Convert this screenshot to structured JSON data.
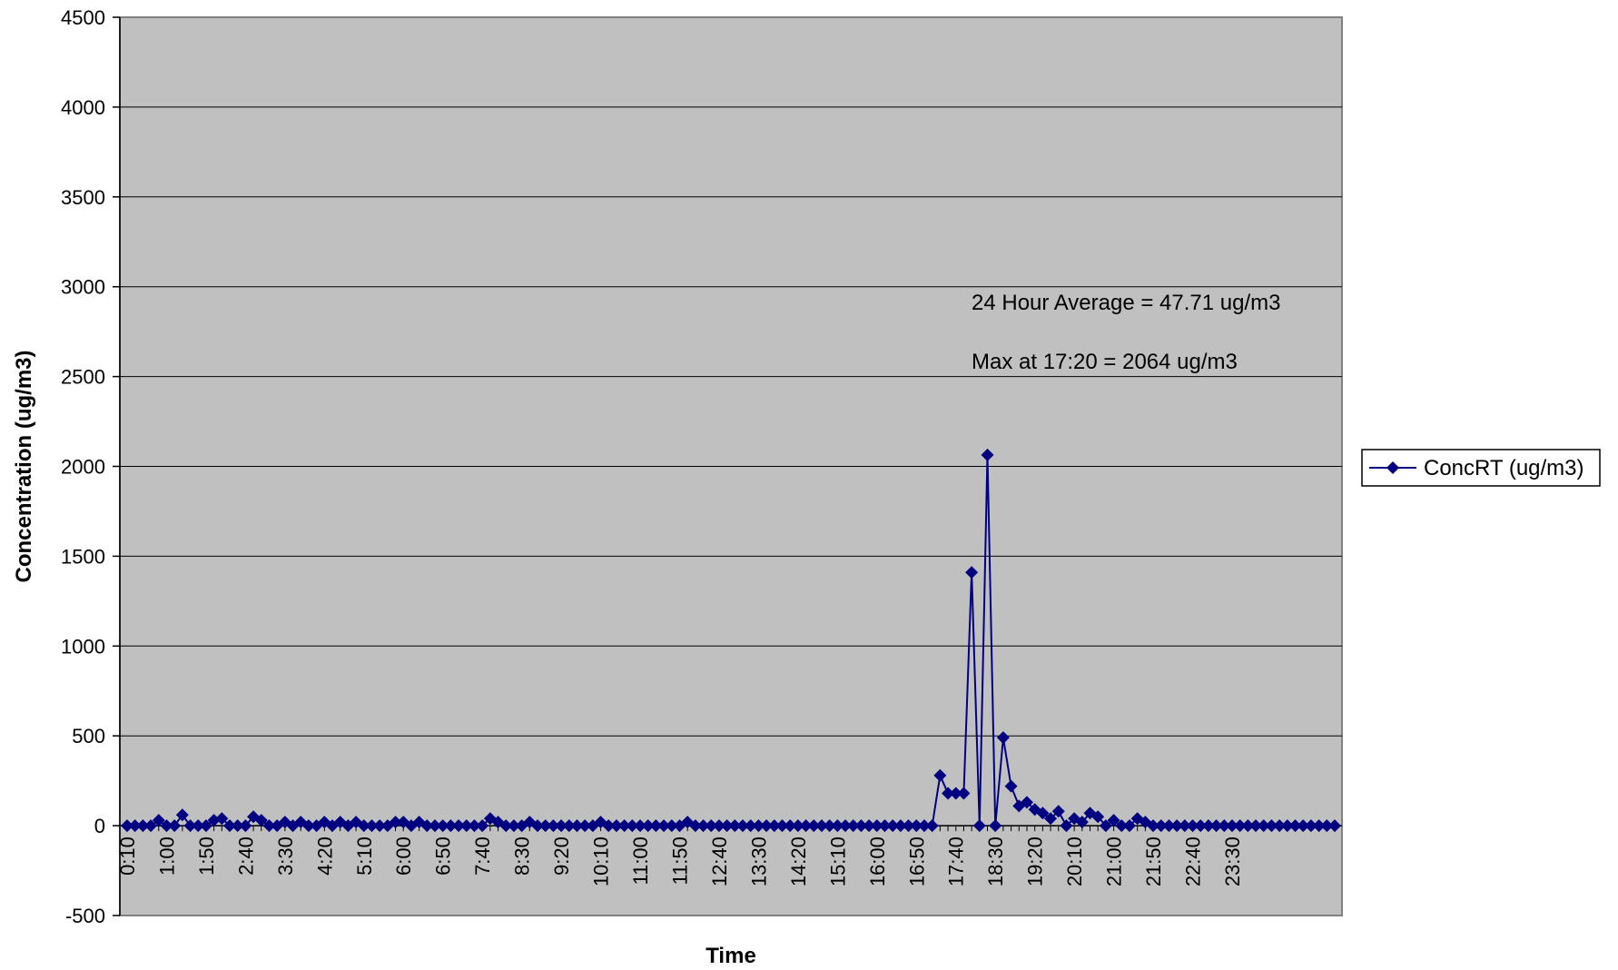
{
  "chart_data": {
    "type": "line",
    "xlabel": "Time",
    "ylabel": "Concentration (ug/m3)",
    "ylim": [
      -500,
      4500
    ],
    "yticks": [
      -500,
      0,
      500,
      1000,
      1500,
      2000,
      2500,
      3000,
      3500,
      4000,
      4500
    ],
    "grid": true,
    "legend_position": "right",
    "x_tick_labels": [
      "0:10",
      "1:00",
      "1:50",
      "2:40",
      "3:30",
      "4:20",
      "5:10",
      "6:00",
      "6:50",
      "7:40",
      "8:30",
      "9:20",
      "10:10",
      "11:00",
      "11:50",
      "12:40",
      "13:30",
      "14:20",
      "15:10",
      "16:00",
      "16:50",
      "17:40",
      "18:30",
      "19:20",
      "20:10",
      "21:00",
      "21:50",
      "22:40",
      "23:30"
    ],
    "x_start": "0:10",
    "x_step_minutes": 10,
    "annotations": [
      "24 Hour Average = 47.71 ug/m3",
      "Max at 17:20 = 2064 ug/m3"
    ],
    "series": [
      {
        "name": "ConcRT (ug/m3)",
        "color": "#000080",
        "values": [
          0,
          0,
          0,
          0,
          30,
          0,
          0,
          60,
          0,
          0,
          0,
          30,
          40,
          0,
          0,
          0,
          50,
          30,
          0,
          0,
          20,
          0,
          20,
          0,
          0,
          20,
          0,
          20,
          0,
          20,
          0,
          0,
          0,
          0,
          20,
          20,
          0,
          20,
          0,
          0,
          0,
          0,
          0,
          0,
          0,
          0,
          40,
          20,
          0,
          0,
          0,
          20,
          0,
          0,
          0,
          0,
          0,
          0,
          0,
          0,
          20,
          0,
          0,
          0,
          0,
          0,
          0,
          0,
          0,
          0,
          0,
          20,
          0,
          0,
          0,
          0,
          0,
          0,
          0,
          0,
          0,
          0,
          0,
          0,
          0,
          0,
          0,
          0,
          0,
          0,
          0,
          0,
          0,
          0,
          0,
          0,
          0,
          0,
          0,
          0,
          0,
          0,
          0,
          280,
          180,
          180,
          180,
          1410,
          0,
          2064,
          0,
          490,
          220,
          110,
          130,
          90,
          70,
          40,
          80,
          0,
          40,
          20,
          70,
          50,
          0,
          30,
          0,
          0,
          40,
          20,
          0,
          0,
          0,
          0,
          0,
          0,
          0,
          0,
          0,
          0,
          0,
          0,
          0,
          0,
          0,
          0,
          0,
          0,
          0,
          0,
          0,
          0,
          0,
          0
        ]
      }
    ]
  }
}
